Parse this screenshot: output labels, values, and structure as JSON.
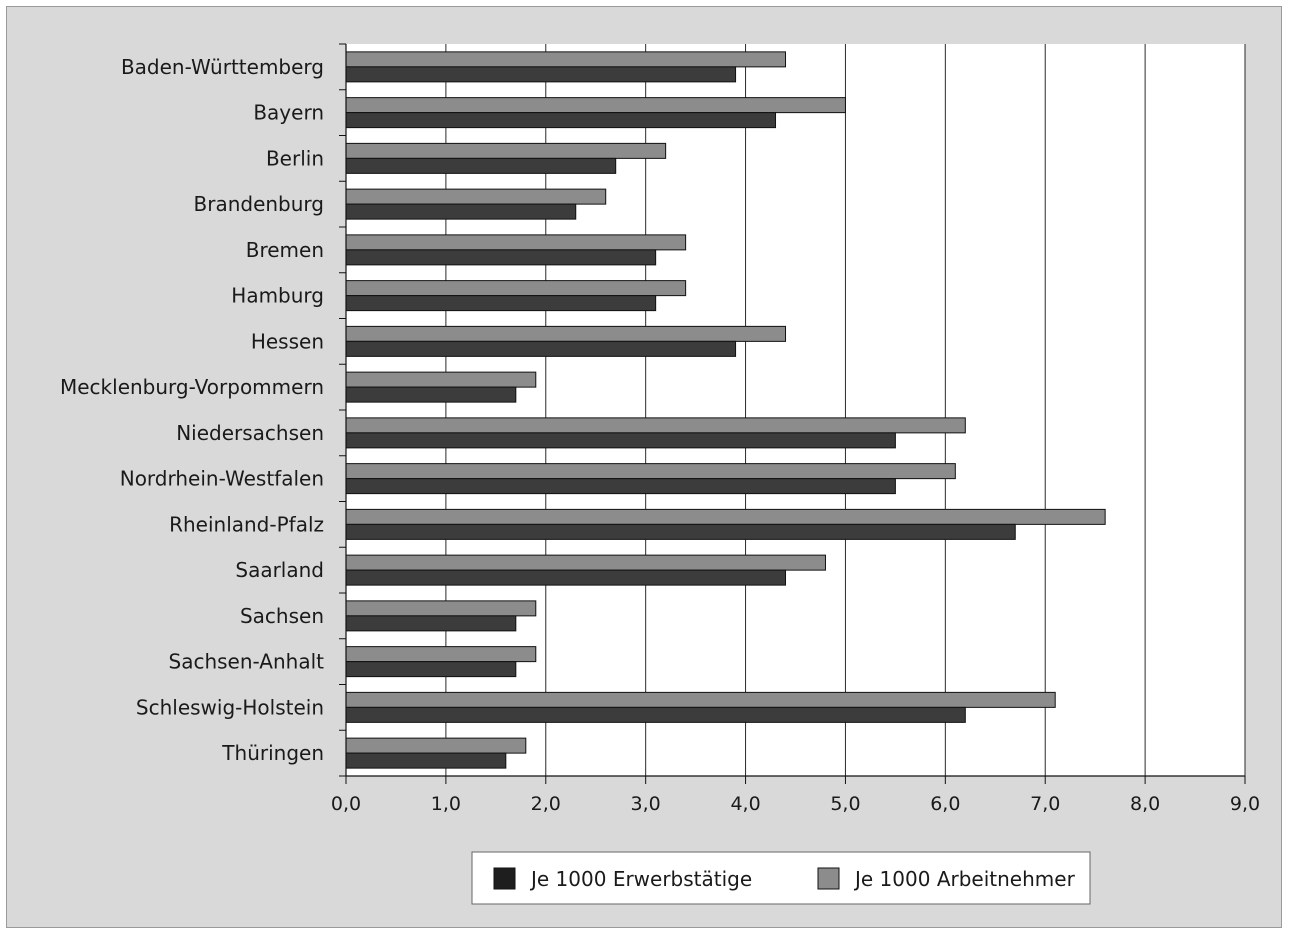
{
  "chart_data": {
    "type": "bar",
    "orientation": "horizontal",
    "categories": [
      "Baden-Württemberg",
      "Bayern",
      "Berlin",
      "Brandenburg",
      "Bremen",
      "Hamburg",
      "Hessen",
      "Mecklenburg-Vorpommern",
      "Niedersachsen",
      "Nordrhein-Westfalen",
      "Rheinland-Pfalz",
      "Saarland",
      "Sachsen",
      "Sachsen-Anhalt",
      "Schleswig-Holstein",
      "Thüringen"
    ],
    "series": [
      {
        "name": "Je 1000 Arbeitnehmer",
        "color": "#8c8c8c",
        "values": [
          4.4,
          5.0,
          3.2,
          2.6,
          3.4,
          3.4,
          4.4,
          1.9,
          6.2,
          6.1,
          7.6,
          4.8,
          1.9,
          1.9,
          7.1,
          1.8
        ]
      },
      {
        "name": "Je 1000 Erwerbstätige",
        "color": "#3c3c3c",
        "values": [
          3.9,
          4.3,
          2.7,
          2.3,
          3.1,
          3.1,
          3.9,
          1.7,
          5.5,
          5.5,
          6.7,
          4.4,
          1.7,
          1.7,
          6.2,
          1.6
        ]
      }
    ],
    "xlim": [
      0,
      9
    ],
    "xticks": [
      0,
      1,
      2,
      3,
      4,
      5,
      6,
      7,
      8,
      9
    ],
    "xtick_labels": [
      "0,0",
      "1,0",
      "2,0",
      "3,0",
      "4,0",
      "5,0",
      "6,0",
      "7,0",
      "8,0",
      "9,0"
    ],
    "grid": "vertical",
    "legend": {
      "position": "bottom",
      "entries": [
        {
          "label": "Je 1000 Erwerbstätige",
          "color": "#1e1e1e"
        },
        {
          "label": "Je 1000 Arbeitnehmer",
          "color": "#8c8c8c"
        }
      ]
    }
  }
}
